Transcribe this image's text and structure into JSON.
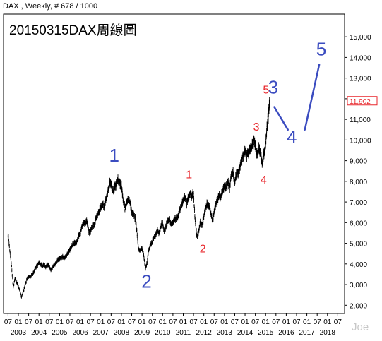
{
  "header": "DAX , Weekly, # 678 / 1000",
  "title": "20150315DAX周線圖",
  "watermark": "Joe",
  "colors": {
    "price": "#000000",
    "red_labels": "#e8262b",
    "blue_labels": "#3b4cc0",
    "last_price_box": "#e8262b"
  },
  "chart_data": {
    "type": "line",
    "title": "20150315DAX周線圖",
    "xlabel": "",
    "ylabel": "",
    "ylim": [
      1600,
      16100
    ],
    "grid": false,
    "yticks": [
      2000,
      3000,
      4000,
      5000,
      6000,
      7000,
      8000,
      9000,
      10000,
      11000,
      12000,
      13000,
      14000,
      15000
    ],
    "ytick_labels": [
      "2,000",
      "3,000",
      "4,000",
      "5,000",
      "6,000",
      "7,000",
      "8,000",
      "9,000",
      "10,000",
      "11,000",
      "12,000",
      "13,000",
      "14,000",
      "15,000"
    ],
    "xticks_months": [
      {
        "t": 2002.5,
        "label": "07"
      },
      {
        "t": 2003.0,
        "label": "01"
      },
      {
        "t": 2003.5,
        "label": "07"
      },
      {
        "t": 2004.0,
        "label": "01"
      },
      {
        "t": 2004.5,
        "label": "07"
      },
      {
        "t": 2005.0,
        "label": "01"
      },
      {
        "t": 2005.5,
        "label": "07"
      },
      {
        "t": 2006.0,
        "label": "01"
      },
      {
        "t": 2006.5,
        "label": "07"
      },
      {
        "t": 2007.0,
        "label": "01"
      },
      {
        "t": 2007.5,
        "label": "07"
      },
      {
        "t": 2008.0,
        "label": "01"
      },
      {
        "t": 2008.5,
        "label": "07"
      },
      {
        "t": 2009.0,
        "label": "01"
      },
      {
        "t": 2009.5,
        "label": "07"
      },
      {
        "t": 2010.0,
        "label": "01"
      },
      {
        "t": 2010.5,
        "label": "07"
      },
      {
        "t": 2011.0,
        "label": "01"
      },
      {
        "t": 2011.5,
        "label": "07"
      },
      {
        "t": 2012.0,
        "label": "01"
      },
      {
        "t": 2012.5,
        "label": "07"
      },
      {
        "t": 2013.0,
        "label": "01"
      },
      {
        "t": 2013.5,
        "label": "07"
      },
      {
        "t": 2014.0,
        "label": "01"
      },
      {
        "t": 2014.5,
        "label": "07"
      },
      {
        "t": 2015.0,
        "label": "01"
      },
      {
        "t": 2015.5,
        "label": "07"
      },
      {
        "t": 2016.0,
        "label": "01"
      },
      {
        "t": 2016.5,
        "label": "07"
      },
      {
        "t": 2017.0,
        "label": "01"
      },
      {
        "t": 2017.5,
        "label": "07"
      },
      {
        "t": 2018.0,
        "label": "01"
      },
      {
        "t": 2018.5,
        "label": "07"
      }
    ],
    "xticks_years": [
      {
        "t": 2003.0,
        "label": "2003"
      },
      {
        "t": 2004.0,
        "label": "2004"
      },
      {
        "t": 2005.0,
        "label": "2005"
      },
      {
        "t": 2006.0,
        "label": "2006"
      },
      {
        "t": 2007.0,
        "label": "2007"
      },
      {
        "t": 2008.0,
        "label": "2008"
      },
      {
        "t": 2009.0,
        "label": "2009"
      },
      {
        "t": 2010.0,
        "label": "2010"
      },
      {
        "t": 2011.0,
        "label": "2011"
      },
      {
        "t": 2012.0,
        "label": "2012"
      },
      {
        "t": 2013.0,
        "label": "2013"
      },
      {
        "t": 2014.0,
        "label": "2014"
      },
      {
        "t": 2015.0,
        "label": "2015"
      },
      {
        "t": 2016.0,
        "label": "2016"
      },
      {
        "t": 2017.0,
        "label": "2017"
      },
      {
        "t": 2018.0,
        "label": "2018"
      }
    ],
    "last_price_label": "11,902",
    "last_price": 11902,
    "series": [
      {
        "values": [
          [
            2002.5,
            5400
          ],
          [
            2002.58,
            4700
          ],
          [
            2002.67,
            3900
          ],
          [
            2002.75,
            2850
          ],
          [
            2002.83,
            3300
          ],
          [
            2002.92,
            3100
          ],
          [
            2003.0,
            2900
          ],
          [
            2003.08,
            2700
          ],
          [
            2003.15,
            2400
          ],
          [
            2003.25,
            2700
          ],
          [
            2003.33,
            3000
          ],
          [
            2003.42,
            3250
          ],
          [
            2003.5,
            3400
          ],
          [
            2003.58,
            3350
          ],
          [
            2003.67,
            3500
          ],
          [
            2003.75,
            3600
          ],
          [
            2003.83,
            3800
          ],
          [
            2003.92,
            3950
          ],
          [
            2004.0,
            4050
          ],
          [
            2004.08,
            4000
          ],
          [
            2004.17,
            3900
          ],
          [
            2004.25,
            3950
          ],
          [
            2004.33,
            3850
          ],
          [
            2004.42,
            3950
          ],
          [
            2004.5,
            3900
          ],
          [
            2004.58,
            3700
          ],
          [
            2004.67,
            3850
          ],
          [
            2004.75,
            3950
          ],
          [
            2004.83,
            4050
          ],
          [
            2004.92,
            4200
          ],
          [
            2005.0,
            4250
          ],
          [
            2005.08,
            4300
          ],
          [
            2005.17,
            4350
          ],
          [
            2005.25,
            4300
          ],
          [
            2005.33,
            4400
          ],
          [
            2005.42,
            4550
          ],
          [
            2005.5,
            4650
          ],
          [
            2005.58,
            4850
          ],
          [
            2005.67,
            4950
          ],
          [
            2005.75,
            5000
          ],
          [
            2005.83,
            5050
          ],
          [
            2005.92,
            5350
          ],
          [
            2006.0,
            5500
          ],
          [
            2006.08,
            5800
          ],
          [
            2006.17,
            5950
          ],
          [
            2006.25,
            6000
          ],
          [
            2006.33,
            6050
          ],
          [
            2006.42,
            5550
          ],
          [
            2006.5,
            5600
          ],
          [
            2006.58,
            5800
          ],
          [
            2006.67,
            5900
          ],
          [
            2006.75,
            6150
          ],
          [
            2006.83,
            6350
          ],
          [
            2006.92,
            6550
          ],
          [
            2007.0,
            6700
          ],
          [
            2007.08,
            6900
          ],
          [
            2007.17,
            6800
          ],
          [
            2007.25,
            7150
          ],
          [
            2007.33,
            7450
          ],
          [
            2007.42,
            7850
          ],
          [
            2007.5,
            7900
          ],
          [
            2007.58,
            7500
          ],
          [
            2007.67,
            7700
          ],
          [
            2007.75,
            7900
          ],
          [
            2007.83,
            8050
          ],
          [
            2007.92,
            7950
          ],
          [
            2008.0,
            7800
          ],
          [
            2008.08,
            7100
          ],
          [
            2008.17,
            6700
          ],
          [
            2008.25,
            6900
          ],
          [
            2008.33,
            7150
          ],
          [
            2008.42,
            7000
          ],
          [
            2008.5,
            6500
          ],
          [
            2008.58,
            6450
          ],
          [
            2008.67,
            6200
          ],
          [
            2008.75,
            5600
          ],
          [
            2008.83,
            4700
          ],
          [
            2008.92,
            4650
          ],
          [
            2009.0,
            4800
          ],
          [
            2009.08,
            4400
          ],
          [
            2009.17,
            3800
          ],
          [
            2009.25,
            4100
          ],
          [
            2009.33,
            4700
          ],
          [
            2009.42,
            4950
          ],
          [
            2009.5,
            5050
          ],
          [
            2009.58,
            5300
          ],
          [
            2009.67,
            5450
          ],
          [
            2009.75,
            5600
          ],
          [
            2009.83,
            5500
          ],
          [
            2009.92,
            5850
          ],
          [
            2010.0,
            5950
          ],
          [
            2010.08,
            5600
          ],
          [
            2010.17,
            5800
          ],
          [
            2010.25,
            6100
          ],
          [
            2010.33,
            6150
          ],
          [
            2010.42,
            5900
          ],
          [
            2010.5,
            6050
          ],
          [
            2010.58,
            6150
          ],
          [
            2010.67,
            6200
          ],
          [
            2010.75,
            6300
          ],
          [
            2010.83,
            6600
          ],
          [
            2010.92,
            6900
          ],
          [
            2011.0,
            7050
          ],
          [
            2011.08,
            7250
          ],
          [
            2011.17,
            6950
          ],
          [
            2011.25,
            7200
          ],
          [
            2011.33,
            7450
          ],
          [
            2011.42,
            7250
          ],
          [
            2011.5,
            7400
          ],
          [
            2011.58,
            6100
          ],
          [
            2011.67,
            5300
          ],
          [
            2011.75,
            5600
          ],
          [
            2011.83,
            6000
          ],
          [
            2011.92,
            5900
          ],
          [
            2012.0,
            6300
          ],
          [
            2012.08,
            6700
          ],
          [
            2012.17,
            6900
          ],
          [
            2012.25,
            6800
          ],
          [
            2012.33,
            6500
          ],
          [
            2012.42,
            6100
          ],
          [
            2012.5,
            6500
          ],
          [
            2012.58,
            6900
          ],
          [
            2012.67,
            7100
          ],
          [
            2012.75,
            7300
          ],
          [
            2012.83,
            7250
          ],
          [
            2012.92,
            7550
          ],
          [
            2013.0,
            7750
          ],
          [
            2013.08,
            7700
          ],
          [
            2013.17,
            7950
          ],
          [
            2013.25,
            7700
          ],
          [
            2013.33,
            8300
          ],
          [
            2013.42,
            8400
          ],
          [
            2013.5,
            7950
          ],
          [
            2013.58,
            8300
          ],
          [
            2013.67,
            8450
          ],
          [
            2013.75,
            8650
          ],
          [
            2013.83,
            9000
          ],
          [
            2013.92,
            9300
          ],
          [
            2014.0,
            9450
          ],
          [
            2014.08,
            9300
          ],
          [
            2014.17,
            9400
          ],
          [
            2014.25,
            9550
          ],
          [
            2014.33,
            9700
          ],
          [
            2014.42,
            9950
          ],
          [
            2014.5,
            9800
          ],
          [
            2014.58,
            9300
          ],
          [
            2014.67,
            9550
          ],
          [
            2014.75,
            9400
          ],
          [
            2014.83,
            8800
          ],
          [
            2014.92,
            9350
          ],
          [
            2015.0,
            9800
          ],
          [
            2015.08,
            10700
          ],
          [
            2015.14,
            11300
          ],
          [
            2015.2,
            11902
          ]
        ]
      }
    ],
    "annotations": [
      {
        "text": "1",
        "color": "blue",
        "t": 2007.65,
        "v": 8950
      },
      {
        "text": "2",
        "color": "blue",
        "t": 2009.22,
        "v": 2850
      },
      {
        "text": "1",
        "color": "red",
        "t": 2011.28,
        "v": 8150
      },
      {
        "text": "2",
        "color": "red",
        "t": 2011.95,
        "v": 4550
      },
      {
        "text": "3",
        "color": "red",
        "t": 2014.55,
        "v": 10450
      },
      {
        "text": "4",
        "color": "red",
        "t": 2014.9,
        "v": 7900
      },
      {
        "text": "5",
        "color": "red",
        "t": 2015.02,
        "v": 12250
      },
      {
        "text": "3",
        "color": "blue",
        "t": 2015.37,
        "v": 12250
      },
      {
        "text": "4",
        "color": "blue",
        "t": 2016.27,
        "v": 9850
      },
      {
        "text": "5",
        "color": "blue",
        "t": 2017.7,
        "v": 14100
      }
    ],
    "projection_lines": [
      [
        [
          2015.42,
          11600
        ],
        [
          2016.08,
          10500
        ]
      ],
      [
        [
          2016.9,
          10500
        ],
        [
          2017.6,
          13650
        ]
      ]
    ]
  }
}
